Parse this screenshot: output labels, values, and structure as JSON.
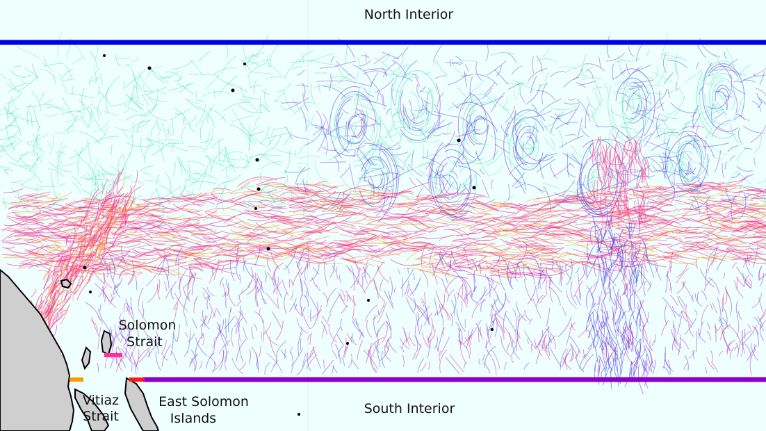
{
  "labels": {
    "north_interior": "North Interior",
    "south_interior": "South Interior",
    "solomon_strait_line1": "Solomon",
    "solomon_strait_line2": "Strait",
    "vitiaz_strait_line1": "Vitiaz",
    "vitiaz_strait_line2": "Strait",
    "east_solomon_line1": "East Solomon",
    "east_solomon_line2": "Islands"
  },
  "colors": {
    "ocean": "#effffd",
    "land": "#cfcfcf",
    "coast": "#000000",
    "north_boundary": "#0000e6",
    "south_boundary": "#8a00c8",
    "vitiaz_segment": "#ff9900",
    "solomon_segment": "#ff2fa0",
    "east_solomon_segment": "#ff1a1a",
    "trajectory_palette": [
      "#ff2f8c",
      "#e8218f",
      "#ff7a59",
      "#f5a623",
      "#8a2be2",
      "#5b3fd6",
      "#2f3fe0",
      "#3fd9b0",
      "#5ae0c8",
      "#b040d0"
    ]
  }
}
